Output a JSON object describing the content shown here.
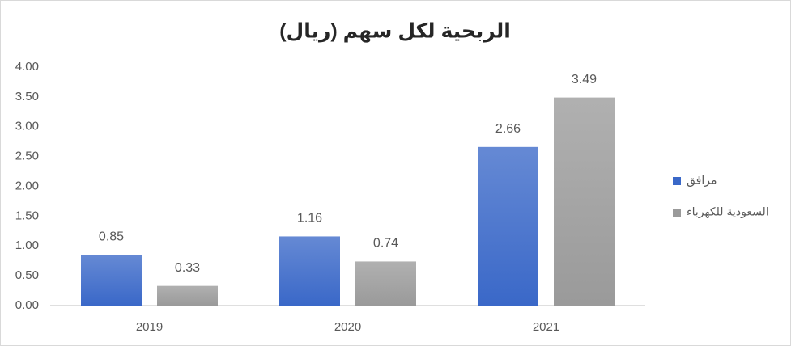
{
  "chart_data": {
    "type": "bar",
    "title": "الربحية لكل سهم (ريال)",
    "categories": [
      "2019",
      "2020",
      "2021"
    ],
    "series": [
      {
        "name": "مرافق",
        "color": "#3a68c8",
        "values": [
          0.85,
          1.16,
          2.66
        ]
      },
      {
        "name": "السعودية للكهرباء",
        "color": "#9a9a9a",
        "values": [
          0.33,
          0.74,
          3.49
        ]
      }
    ],
    "ylim": [
      0,
      4
    ],
    "yticks": [
      {
        "value": 0,
        "label": "0.00"
      },
      {
        "value": 0.5,
        "label": "0.50"
      },
      {
        "value": 1,
        "label": "1.00"
      },
      {
        "value": 1.5,
        "label": "1.50"
      },
      {
        "value": 2,
        "label": "2.00"
      },
      {
        "value": 2.5,
        "label": "2.50"
      },
      {
        "value": 3,
        "label": "3.00"
      },
      {
        "value": 3.5,
        "label": "3.50"
      },
      {
        "value": 4,
        "label": "4.00"
      }
    ],
    "grid": false,
    "legend": "right"
  }
}
